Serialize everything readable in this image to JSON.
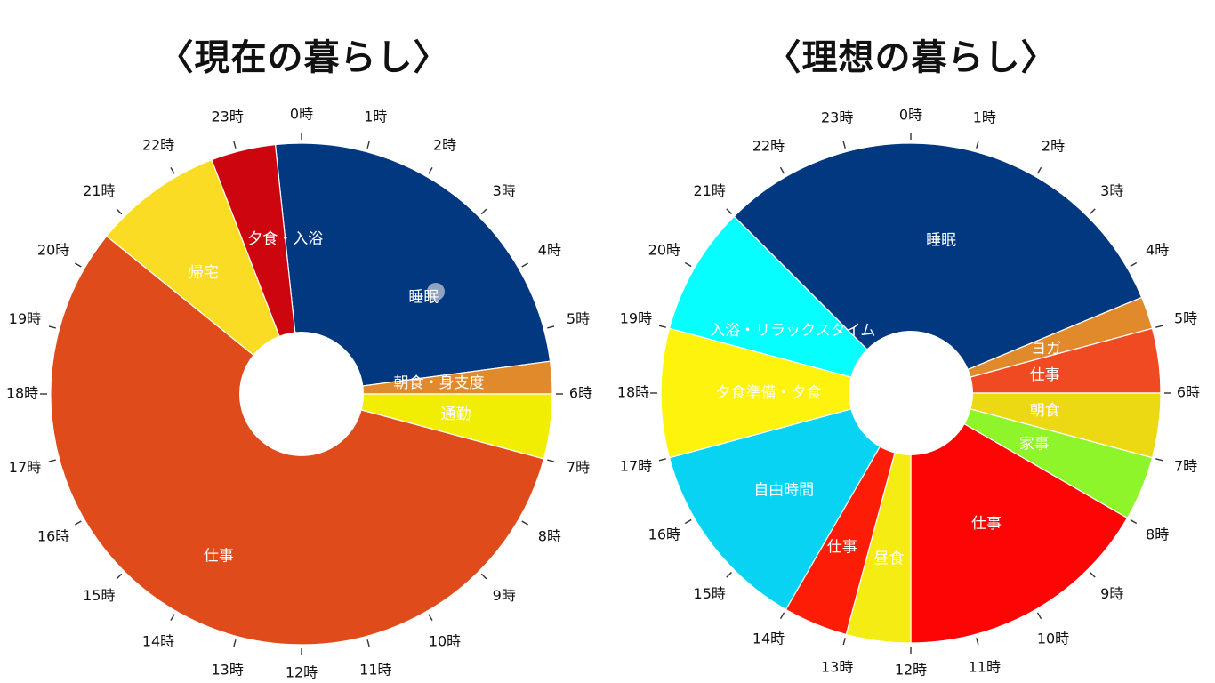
{
  "hour_unit": "時",
  "charts": [
    {
      "title": "〈現在の暮らし〉",
      "chart_data": {
        "type": "pie",
        "title": "〈現在の暮らし〉",
        "x_unit": "時",
        "segments": [
          {
            "label": "睡眠",
            "start": 23.6,
            "end": 5.5,
            "color": "#02387f"
          },
          {
            "label": "朝食・身支度",
            "start": 5.5,
            "end": 6.0,
            "color": "#e08a2c"
          },
          {
            "label": "通勤",
            "start": 6.0,
            "end": 7.0,
            "color": "#f1ee04"
          },
          {
            "label": "仕事",
            "start": 7.0,
            "end": 20.6,
            "color": "#df4b1b"
          },
          {
            "label": "帰宅",
            "start": 20.6,
            "end": 22.6,
            "color": "#fbdc25"
          },
          {
            "label": "夕食・入浴",
            "start": 22.6,
            "end": 23.6,
            "color": "#cc050f"
          }
        ]
      }
    },
    {
      "title": "〈理想の暮らし〉",
      "chart_data": {
        "type": "pie",
        "title": "〈理想の暮らし〉",
        "x_unit": "時",
        "segments": [
          {
            "label": "睡眠",
            "start": 21.0,
            "end": 4.5,
            "color": "#02387f"
          },
          {
            "label": "ヨガ",
            "start": 4.5,
            "end": 5.0,
            "color": "#e08a2c"
          },
          {
            "label": "仕事",
            "start": 5.0,
            "end": 6.0,
            "color": "#f04a22"
          },
          {
            "label": "朝食",
            "start": 6.0,
            "end": 7.0,
            "color": "#ecd914"
          },
          {
            "label": "家事",
            "start": 7.0,
            "end": 8.0,
            "color": "#8ef52a"
          },
          {
            "label": "仕事",
            "start": 8.0,
            "end": 12.0,
            "color": "#fe0505"
          },
          {
            "label": "昼食",
            "start": 12.0,
            "end": 13.0,
            "color": "#f4ec13"
          },
          {
            "label": "仕事",
            "start": 13.0,
            "end": 14.0,
            "color": "#fd1d07"
          },
          {
            "label": "自由時間",
            "start": 14.0,
            "end": 17.0,
            "color": "#08d3f3"
          },
          {
            "label": "夕食準備・夕食",
            "start": 17.0,
            "end": 19.0,
            "color": "#fdf30c"
          },
          {
            "label": "入浴・リラックスタイム",
            "start": 19.0,
            "end": 21.0,
            "color": "#06fefe"
          }
        ]
      }
    }
  ]
}
